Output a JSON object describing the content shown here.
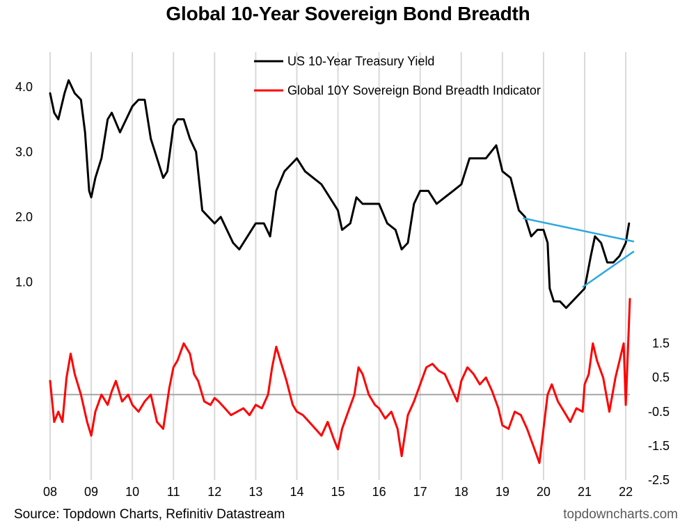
{
  "header": {
    "title": "Global 10-Year Sovereign Bond Breadth"
  },
  "footer": {
    "source": "Source: Topdown Charts, Refinitiv Datastream",
    "brand": "topdowncharts.com"
  },
  "colors": {
    "treasury": "#000000",
    "breadth": "#ff0000",
    "trendline": "#29a8e0",
    "grid": "#d9d9d9",
    "zero_line": "#a6a6a6"
  },
  "chart_data": {
    "type": "line",
    "title": "Global 10-Year Sovereign Bond Breadth",
    "x_ticks": [
      "08",
      "09",
      "10",
      "11",
      "12",
      "13",
      "14",
      "15",
      "16",
      "17",
      "18",
      "19",
      "20",
      "21",
      "22"
    ],
    "x_range": [
      2008.0,
      2022.1
    ],
    "grid": "vertical",
    "legend_placement": "top-center",
    "left_axis": {
      "ticks": [
        "1.0",
        "2.0",
        "3.0",
        "4.0"
      ],
      "range": [
        0.5,
        4.5
      ]
    },
    "right_axis": {
      "ticks": [
        "-2.5",
        "-1.5",
        "-0.5",
        "0.5",
        "1.5"
      ],
      "range": [
        -2.5,
        3.0
      ]
    },
    "series": [
      {
        "name": "US 10-Year Treasury Yield",
        "axis": "left",
        "x": [
          2008.0,
          2008.1,
          2008.2,
          2008.35,
          2008.45,
          2008.6,
          2008.75,
          2008.85,
          2008.95,
          2009.0,
          2009.1,
          2009.25,
          2009.4,
          2009.5,
          2009.7,
          2009.85,
          2010.0,
          2010.15,
          2010.3,
          2010.45,
          2010.6,
          2010.75,
          2010.85,
          2011.0,
          2011.1,
          2011.25,
          2011.4,
          2011.55,
          2011.7,
          2011.85,
          2012.0,
          2012.15,
          2012.3,
          2012.45,
          2012.6,
          2012.8,
          2013.0,
          2013.2,
          2013.35,
          2013.5,
          2013.7,
          2013.85,
          2014.0,
          2014.2,
          2014.4,
          2014.6,
          2014.8,
          2015.0,
          2015.1,
          2015.3,
          2015.45,
          2015.6,
          2015.8,
          2016.0,
          2016.2,
          2016.4,
          2016.55,
          2016.7,
          2016.85,
          2017.0,
          2017.2,
          2017.4,
          2017.6,
          2017.8,
          2018.0,
          2018.2,
          2018.4,
          2018.6,
          2018.85,
          2019.0,
          2019.2,
          2019.4,
          2019.55,
          2019.7,
          2019.85,
          2020.0,
          2020.1,
          2020.15,
          2020.25,
          2020.4,
          2020.55,
          2020.7,
          2020.85,
          2021.0,
          2021.15,
          2021.25,
          2021.4,
          2021.55,
          2021.7,
          2021.85,
          2022.0,
          2022.08
        ],
        "values": [
          3.9,
          3.6,
          3.5,
          3.9,
          4.1,
          3.9,
          3.8,
          3.3,
          2.4,
          2.3,
          2.6,
          2.9,
          3.5,
          3.6,
          3.3,
          3.5,
          3.7,
          3.8,
          3.8,
          3.2,
          2.9,
          2.6,
          2.7,
          3.4,
          3.5,
          3.5,
          3.2,
          3.0,
          2.1,
          2.0,
          1.9,
          2.0,
          1.8,
          1.6,
          1.5,
          1.7,
          1.9,
          1.9,
          1.7,
          2.4,
          2.7,
          2.8,
          2.9,
          2.7,
          2.6,
          2.5,
          2.3,
          2.1,
          1.8,
          1.9,
          2.3,
          2.2,
          2.2,
          2.2,
          1.9,
          1.8,
          1.5,
          1.6,
          2.2,
          2.4,
          2.4,
          2.2,
          2.3,
          2.4,
          2.5,
          2.9,
          2.9,
          2.9,
          3.1,
          2.7,
          2.6,
          2.1,
          2.0,
          1.7,
          1.8,
          1.8,
          1.6,
          0.9,
          0.7,
          0.7,
          0.6,
          0.7,
          0.8,
          0.9,
          1.4,
          1.7,
          1.6,
          1.3,
          1.3,
          1.4,
          1.6,
          1.9
        ]
      },
      {
        "name": "Global 10Y Sovereign Bond Breadth Indicator",
        "axis": "right",
        "x": [
          2008.0,
          2008.1,
          2008.2,
          2008.3,
          2008.4,
          2008.5,
          2008.6,
          2008.75,
          2008.9,
          2009.0,
          2009.1,
          2009.25,
          2009.4,
          2009.5,
          2009.6,
          2009.75,
          2009.9,
          2010.0,
          2010.15,
          2010.3,
          2010.45,
          2010.6,
          2010.75,
          2010.9,
          2011.0,
          2011.1,
          2011.25,
          2011.4,
          2011.5,
          2011.6,
          2011.75,
          2011.9,
          2012.0,
          2012.1,
          2012.25,
          2012.4,
          2012.55,
          2012.7,
          2012.85,
          2013.0,
          2013.15,
          2013.3,
          2013.4,
          2013.5,
          2013.6,
          2013.75,
          2013.9,
          2014.0,
          2014.15,
          2014.3,
          2014.45,
          2014.6,
          2014.75,
          2014.9,
          2015.0,
          2015.1,
          2015.25,
          2015.4,
          2015.5,
          2015.6,
          2015.75,
          2015.9,
          2016.0,
          2016.15,
          2016.3,
          2016.45,
          2016.55,
          2016.7,
          2016.85,
          2017.0,
          2017.15,
          2017.3,
          2017.45,
          2017.6,
          2017.75,
          2017.9,
          2018.0,
          2018.15,
          2018.3,
          2018.45,
          2018.6,
          2018.75,
          2018.9,
          2019.0,
          2019.15,
          2019.3,
          2019.45,
          2019.6,
          2019.75,
          2019.9,
          2020.0,
          2020.1,
          2020.2,
          2020.35,
          2020.5,
          2020.65,
          2020.8,
          2020.95,
          2021.0,
          2021.1,
          2021.2,
          2021.3,
          2021.45,
          2021.6,
          2021.75,
          2021.85,
          2021.95,
          2022.0,
          2022.05,
          2022.1
        ],
        "values": [
          0.4,
          -0.8,
          -0.5,
          -0.8,
          0.5,
          1.2,
          0.6,
          0.0,
          -0.8,
          -1.2,
          -0.5,
          0.0,
          -0.3,
          0.1,
          0.4,
          -0.2,
          0.0,
          -0.3,
          -0.5,
          -0.2,
          0.0,
          -0.8,
          -1.0,
          0.2,
          0.8,
          1.0,
          1.5,
          1.2,
          0.6,
          0.4,
          -0.2,
          -0.3,
          -0.1,
          -0.2,
          -0.4,
          -0.6,
          -0.5,
          -0.4,
          -0.6,
          -0.3,
          -0.4,
          0.0,
          0.8,
          1.4,
          1.0,
          0.4,
          -0.3,
          -0.5,
          -0.6,
          -0.8,
          -1.0,
          -1.2,
          -0.8,
          -1.3,
          -1.6,
          -1.0,
          -0.5,
          0.0,
          0.8,
          0.6,
          0.0,
          -0.3,
          -0.4,
          -0.7,
          -0.5,
          -1.0,
          -1.8,
          -0.6,
          -0.2,
          0.3,
          0.8,
          0.9,
          0.7,
          0.6,
          0.2,
          -0.2,
          0.4,
          0.8,
          0.6,
          0.3,
          0.5,
          0.1,
          -0.4,
          -0.9,
          -1.0,
          -0.5,
          -0.6,
          -1.0,
          -1.5,
          -2.0,
          -1.0,
          0.0,
          0.3,
          -0.2,
          -0.5,
          -0.8,
          -0.4,
          -0.5,
          0.3,
          0.6,
          1.5,
          1.0,
          0.5,
          -0.5,
          0.5,
          1.0,
          1.5,
          -0.3,
          1.2,
          2.8
        ]
      }
    ],
    "trendlines": [
      {
        "axis": "left",
        "x": [
          2019.5,
          2022.2
        ],
        "values": [
          1.98,
          1.62
        ]
      },
      {
        "axis": "left",
        "x": [
          2020.95,
          2022.2
        ],
        "values": [
          0.92,
          1.47
        ]
      }
    ],
    "zero_line": {
      "axis": "right",
      "value": 0
    }
  }
}
